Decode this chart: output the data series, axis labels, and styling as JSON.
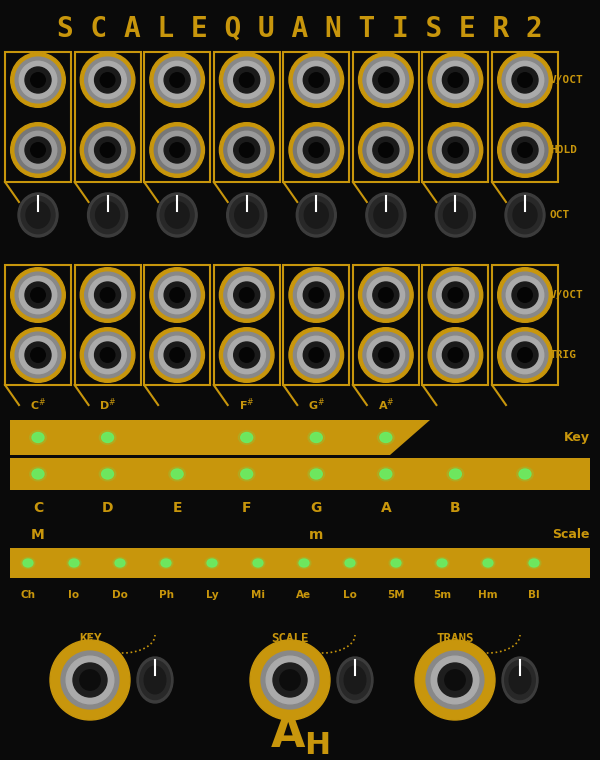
{
  "bg_color": "#0a0a0a",
  "gold_color": "#c8960c",
  "green_led": "#66ee66",
  "title": "S C A L E Q U A N T I S E R 2",
  "title_color": "#c8960c",
  "natural_notes": [
    "C",
    "D",
    "E",
    "F",
    "G",
    "A",
    "B"
  ],
  "scale_modes": [
    "Ch",
    "Io",
    "Do",
    "Ph",
    "Ly",
    "Mi",
    "Ae",
    "Lo",
    "5M",
    "5m",
    "Hm",
    "Bl"
  ],
  "knob_group_labels": [
    "KEY",
    "SCALE",
    "TRANS"
  ],
  "n_channels": 8
}
